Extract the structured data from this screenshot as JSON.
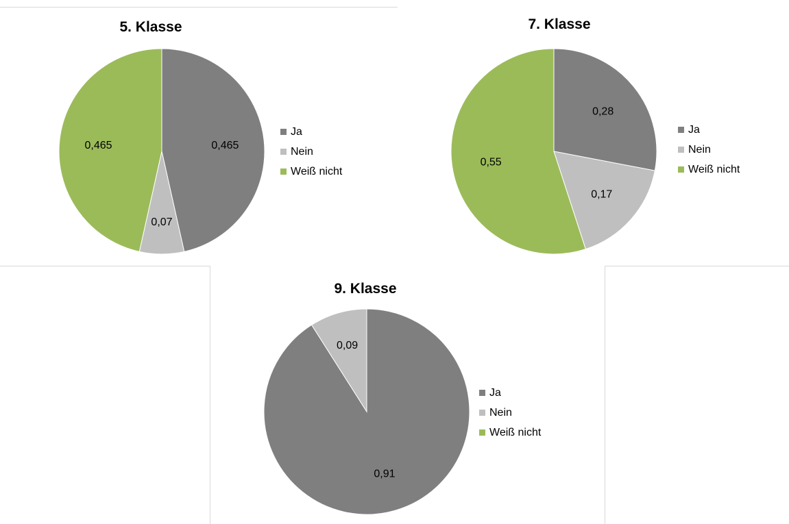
{
  "colors": {
    "Ja": "#7f7f7f",
    "Nein": "#bfbfbf",
    "Weiß nicht": "#9bbb59"
  },
  "chart_data": [
    {
      "type": "pie",
      "title": "5. Klasse",
      "categories": [
        "Ja",
        "Nein",
        "Weiß nicht"
      ],
      "values": [
        0.465,
        0.07,
        0.465
      ],
      "data_labels": [
        "0,465",
        "0,07",
        "0,465"
      ],
      "legend": "right"
    },
    {
      "type": "pie",
      "title": "7. Klasse",
      "categories": [
        "Ja",
        "Nein",
        "Weiß nicht"
      ],
      "values": [
        0.28,
        0.17,
        0.55
      ],
      "data_labels": [
        "0,28",
        "0,17",
        "0,55"
      ],
      "legend": "right"
    },
    {
      "type": "pie",
      "title": "9. Klasse",
      "categories": [
        "Ja",
        "Nein",
        "Weiß nicht"
      ],
      "values": [
        0.91,
        0.09,
        0
      ],
      "data_labels": [
        "0,91",
        "0,09",
        ""
      ],
      "legend": "right"
    }
  ]
}
